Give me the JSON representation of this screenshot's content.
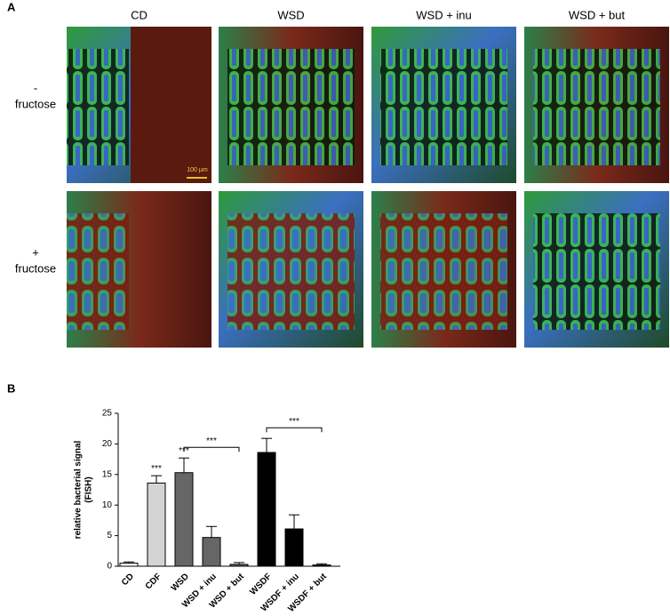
{
  "panel_a": {
    "label": "A",
    "columns": [
      "CD",
      "WSD",
      "WSD + inu",
      "WSD + but"
    ],
    "rows": [
      {
        "sign": "-",
        "label": "fructose"
      },
      {
        "sign": "+",
        "label": "fructose"
      }
    ],
    "scale_bar": "100 µm"
  },
  "chart_data": {
    "type": "bar",
    "panel_label": "B",
    "ylabel": [
      "relative bacterial signal",
      "(FISH)"
    ],
    "categories": [
      "CD",
      "CDF",
      "WSD",
      "WSD + inu",
      "WSD + but",
      "WSDF",
      "WSDF + inu",
      "WSDF + but"
    ],
    "values": [
      0.5,
      13.6,
      15.3,
      4.7,
      0.3,
      18.6,
      6.1,
      0.2
    ],
    "errors": [
      0.2,
      1.2,
      2.4,
      1.8,
      0.3,
      2.3,
      2.3,
      0.2
    ],
    "colors": [
      "#ffffff",
      "#d4d4d4",
      "#666666",
      "#666666",
      "#666666",
      "#000000",
      "#000000",
      "#000000"
    ],
    "significance_labels": [
      null,
      "***",
      "***",
      null,
      null,
      null,
      null,
      null
    ],
    "brackets": [
      {
        "from": "WSD",
        "to": "WSD + but",
        "label": "***"
      },
      {
        "from": "WSDF",
        "to": "WSDF + but",
        "label": "***"
      }
    ],
    "ylim": [
      0,
      25
    ],
    "yticks": [
      0,
      5,
      10,
      15,
      20,
      25
    ]
  }
}
